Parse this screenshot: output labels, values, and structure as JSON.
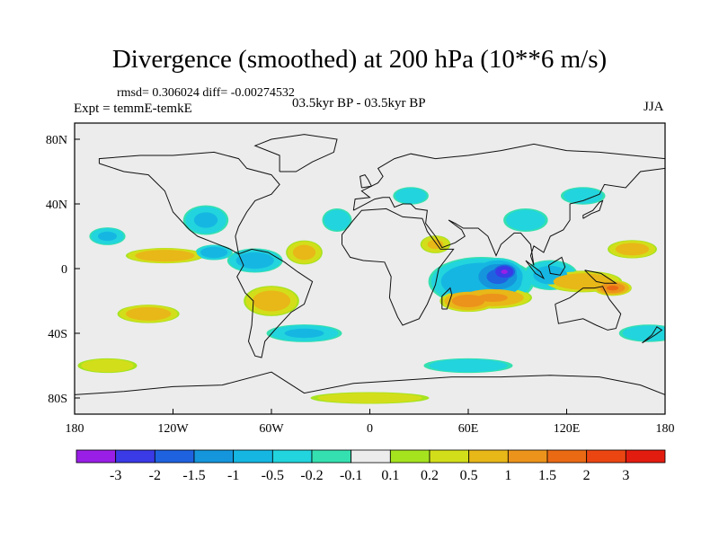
{
  "chart_data": {
    "type": "heatmap",
    "title": "Divergence (smoothed) at 200 hPa (10**6 m/s)",
    "stats_label": "rmsd= 0.306024 diff= -0.00274532",
    "rmsd": 0.306024,
    "diff": -0.00274532,
    "experiment_label": "Expt = temmE-temkE",
    "period_label": "03.5kyr BP - 03.5kyr BP",
    "season_label": "JJA",
    "xlabel": "",
    "ylabel": "",
    "xlim": [
      -180,
      180
    ],
    "ylim": [
      -90,
      90
    ],
    "x_ticks": [
      {
        "value": -180,
        "label": "180"
      },
      {
        "value": -120,
        "label": "120W"
      },
      {
        "value": -60,
        "label": "60W"
      },
      {
        "value": 0,
        "label": "0"
      },
      {
        "value": 60,
        "label": "60E"
      },
      {
        "value": 120,
        "label": "120E"
      },
      {
        "value": 180,
        "label": "180"
      }
    ],
    "y_ticks": [
      {
        "value": 80,
        "label": "80N"
      },
      {
        "value": 40,
        "label": "40N"
      },
      {
        "value": 0,
        "label": "0"
      },
      {
        "value": -40,
        "label": "40S"
      },
      {
        "value": -80,
        "label": "80S"
      }
    ],
    "colorbar": {
      "levels": [
        -3,
        -2,
        -1.5,
        -1,
        -0.5,
        -0.2,
        -0.1,
        0.1,
        0.2,
        0.5,
        1,
        1.5,
        2,
        3
      ],
      "labels": [
        "-3",
        "-2",
        "-1.5",
        "-1",
        "-0.5",
        "-0.2",
        "-0.1",
        "0.1",
        "0.2",
        "0.5",
        "1",
        "1.5",
        "2",
        "3"
      ],
      "colors": [
        "#9a1fe6",
        "#3a3ae6",
        "#1f62e0",
        "#1596dc",
        "#15b7e2",
        "#22d4dd",
        "#35e0b0",
        "#ececec",
        "#a6e31f",
        "#d3de1a",
        "#e8b718",
        "#ec931b",
        "#ea6a14",
        "#eb4612",
        "#e31c10"
      ]
    },
    "anomalies": [
      {
        "lon": 82,
        "lat": -2,
        "rlon": 9,
        "rlat": 6,
        "value": -3.0
      },
      {
        "lon": 78,
        "lat": -5,
        "rlon": 18,
        "rlat": 12,
        "value": -1.6
      },
      {
        "lon": 68,
        "lat": -8,
        "rlon": 34,
        "rlat": 16,
        "value": -0.9
      },
      {
        "lon": 110,
        "lat": -4,
        "rlon": 18,
        "rlat": 10,
        "value": -0.6
      },
      {
        "lon": 60,
        "lat": -20,
        "rlon": 18,
        "rlat": 7,
        "value": 1.3
      },
      {
        "lon": 75,
        "lat": -18,
        "rlon": 25,
        "rlat": 7,
        "value": 1.0
      },
      {
        "lon": 130,
        "lat": -8,
        "rlon": 25,
        "rlat": 7,
        "value": 0.9
      },
      {
        "lon": 148,
        "lat": -12,
        "rlon": 12,
        "rlat": 5,
        "value": 1.5
      },
      {
        "lon": 160,
        "lat": 12,
        "rlon": 16,
        "rlat": 6,
        "value": 0.7
      },
      {
        "lon": -125,
        "lat": 8,
        "rlon": 25,
        "rlat": 5,
        "value": 0.9
      },
      {
        "lon": -95,
        "lat": 10,
        "rlon": 12,
        "rlat": 5,
        "value": -0.8
      },
      {
        "lon": -100,
        "lat": 30,
        "rlon": 15,
        "rlat": 10,
        "value": -0.5
      },
      {
        "lon": -70,
        "lat": 5,
        "rlon": 18,
        "rlat": 8,
        "value": -0.7
      },
      {
        "lon": -60,
        "lat": -20,
        "rlon": 18,
        "rlat": 10,
        "value": 0.7
      },
      {
        "lon": -135,
        "lat": -28,
        "rlon": 20,
        "rlat": 6,
        "value": 0.8
      },
      {
        "lon": -160,
        "lat": 20,
        "rlon": 12,
        "rlat": 6,
        "value": -0.5
      },
      {
        "lon": -40,
        "lat": 10,
        "rlon": 12,
        "rlat": 8,
        "value": 0.6
      },
      {
        "lon": -20,
        "lat": 30,
        "rlon": 10,
        "rlat": 8,
        "value": -0.4
      },
      {
        "lon": 25,
        "lat": 45,
        "rlon": 12,
        "rlat": 6,
        "value": -0.4
      },
      {
        "lon": 40,
        "lat": 15,
        "rlon": 10,
        "rlat": 6,
        "value": 0.5
      },
      {
        "lon": 95,
        "lat": 30,
        "rlon": 15,
        "rlat": 8,
        "value": -0.4
      },
      {
        "lon": 130,
        "lat": 45,
        "rlon": 15,
        "rlat": 6,
        "value": -0.4
      },
      {
        "lon": -40,
        "lat": -40,
        "rlon": 25,
        "rlat": 6,
        "value": -0.5
      },
      {
        "lon": 60,
        "lat": -60,
        "rlon": 30,
        "rlat": 5,
        "value": -0.4
      },
      {
        "lon": 170,
        "lat": -40,
        "rlon": 20,
        "rlat": 6,
        "value": -0.4
      },
      {
        "lon": -160,
        "lat": -60,
        "rlon": 20,
        "rlat": 5,
        "value": 0.4
      },
      {
        "lon": 0,
        "lat": -80,
        "rlon": 40,
        "rlat": 4,
        "value": 0.4
      }
    ]
  }
}
